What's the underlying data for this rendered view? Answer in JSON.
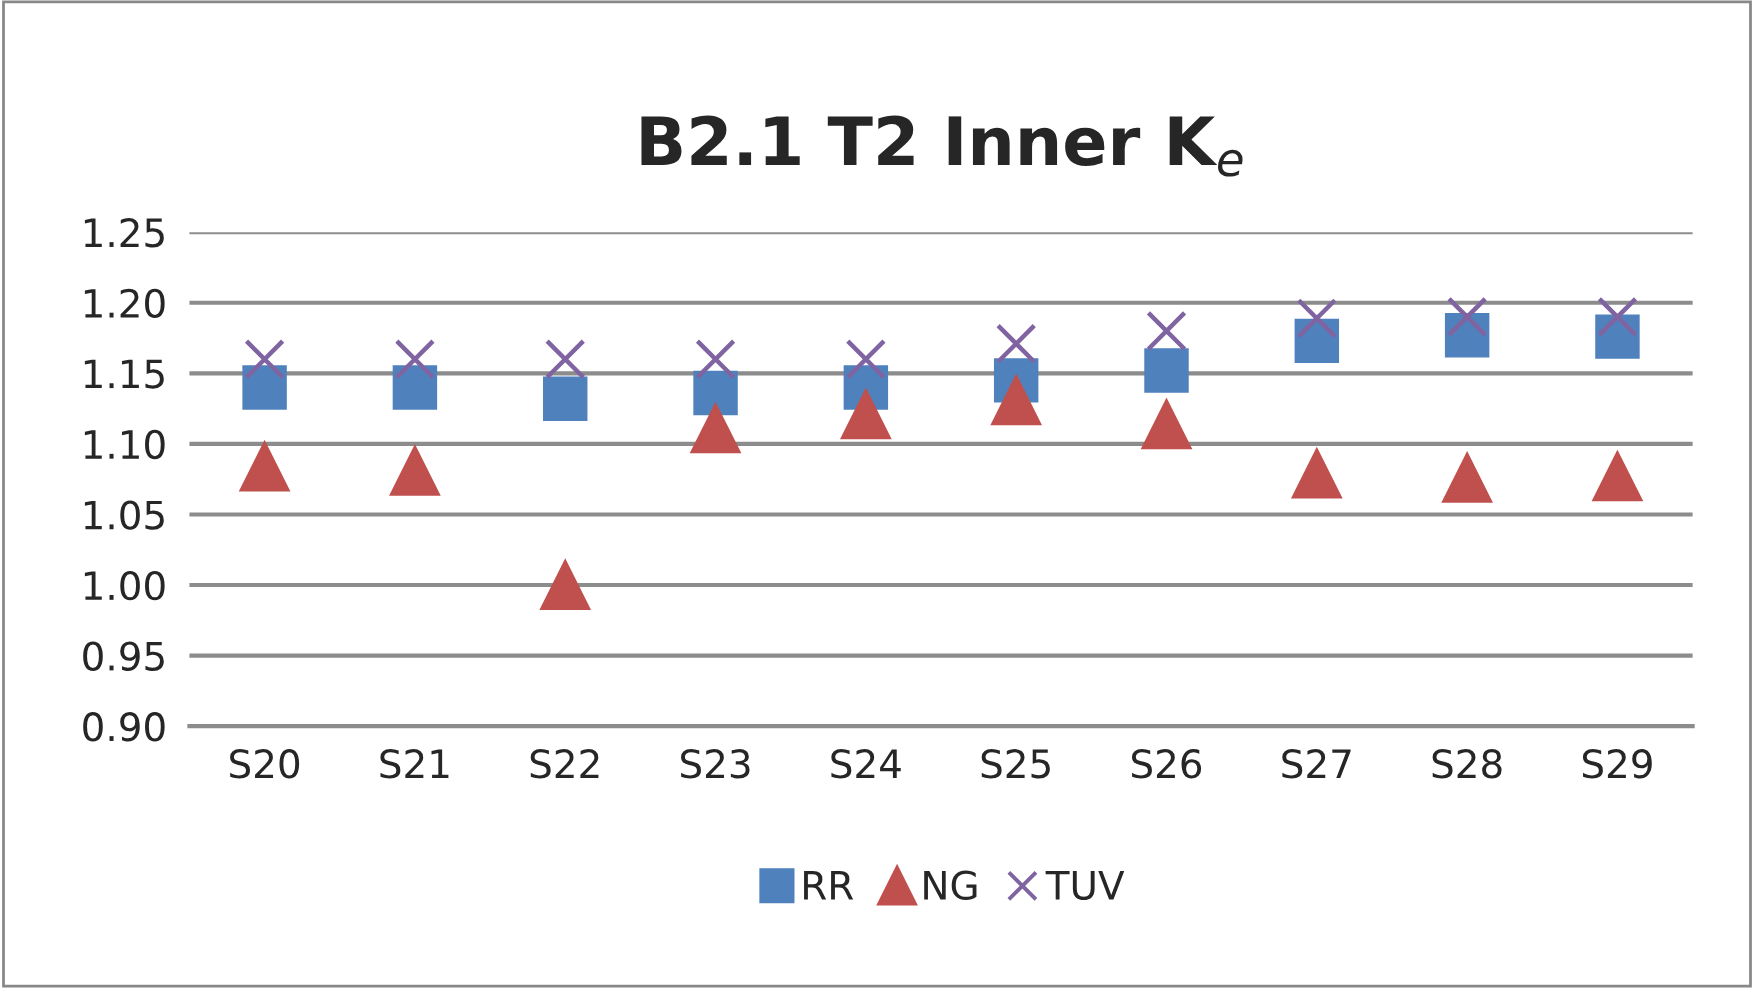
{
  "chart_data": {
    "type": "scatter",
    "title": "B2.1 T2 Inner K$_{e}$",
    "categories": [
      "S20",
      "S21",
      "S22",
      "S23",
      "S24",
      "S25",
      "S26",
      "S27",
      "S28",
      "S29"
    ],
    "series": [
      {
        "name": "RR",
        "color": "#4f81bd",
        "marker": "square",
        "values": [
          1.14,
          1.14,
          1.132,
          1.136,
          1.14,
          1.145,
          1.152,
          1.173,
          1.177,
          1.176
        ]
      },
      {
        "name": "NG",
        "color": "#c0504d",
        "marker": "triangle",
        "values": [
          1.084,
          1.081,
          1.0,
          1.111,
          1.121,
          1.131,
          1.114,
          1.079,
          1.076,
          1.077
        ]
      },
      {
        "name": "TUV",
        "color": "#8064a2",
        "marker": "cross",
        "values": [
          1.16,
          1.16,
          1.16,
          1.16,
          1.16,
          1.171,
          1.18,
          1.189,
          1.19,
          1.19
        ]
      }
    ],
    "ylim": [
      0.9,
      1.25
    ],
    "yticks": [
      {
        "value": 0.9,
        "label": "0.90"
      },
      {
        "value": 0.95,
        "label": "0.95"
      },
      {
        "value": 1.0,
        "label": "1.00"
      },
      {
        "value": 1.05,
        "label": "1.05"
      },
      {
        "value": 1.1,
        "label": "1.10"
      },
      {
        "value": 1.15,
        "label": "1.15"
      },
      {
        "value": 1.2,
        "label": "1.20"
      },
      {
        "value": 1.25,
        "label": "1.25"
      }
    ],
    "grid": "y",
    "legend": "bottom"
  }
}
